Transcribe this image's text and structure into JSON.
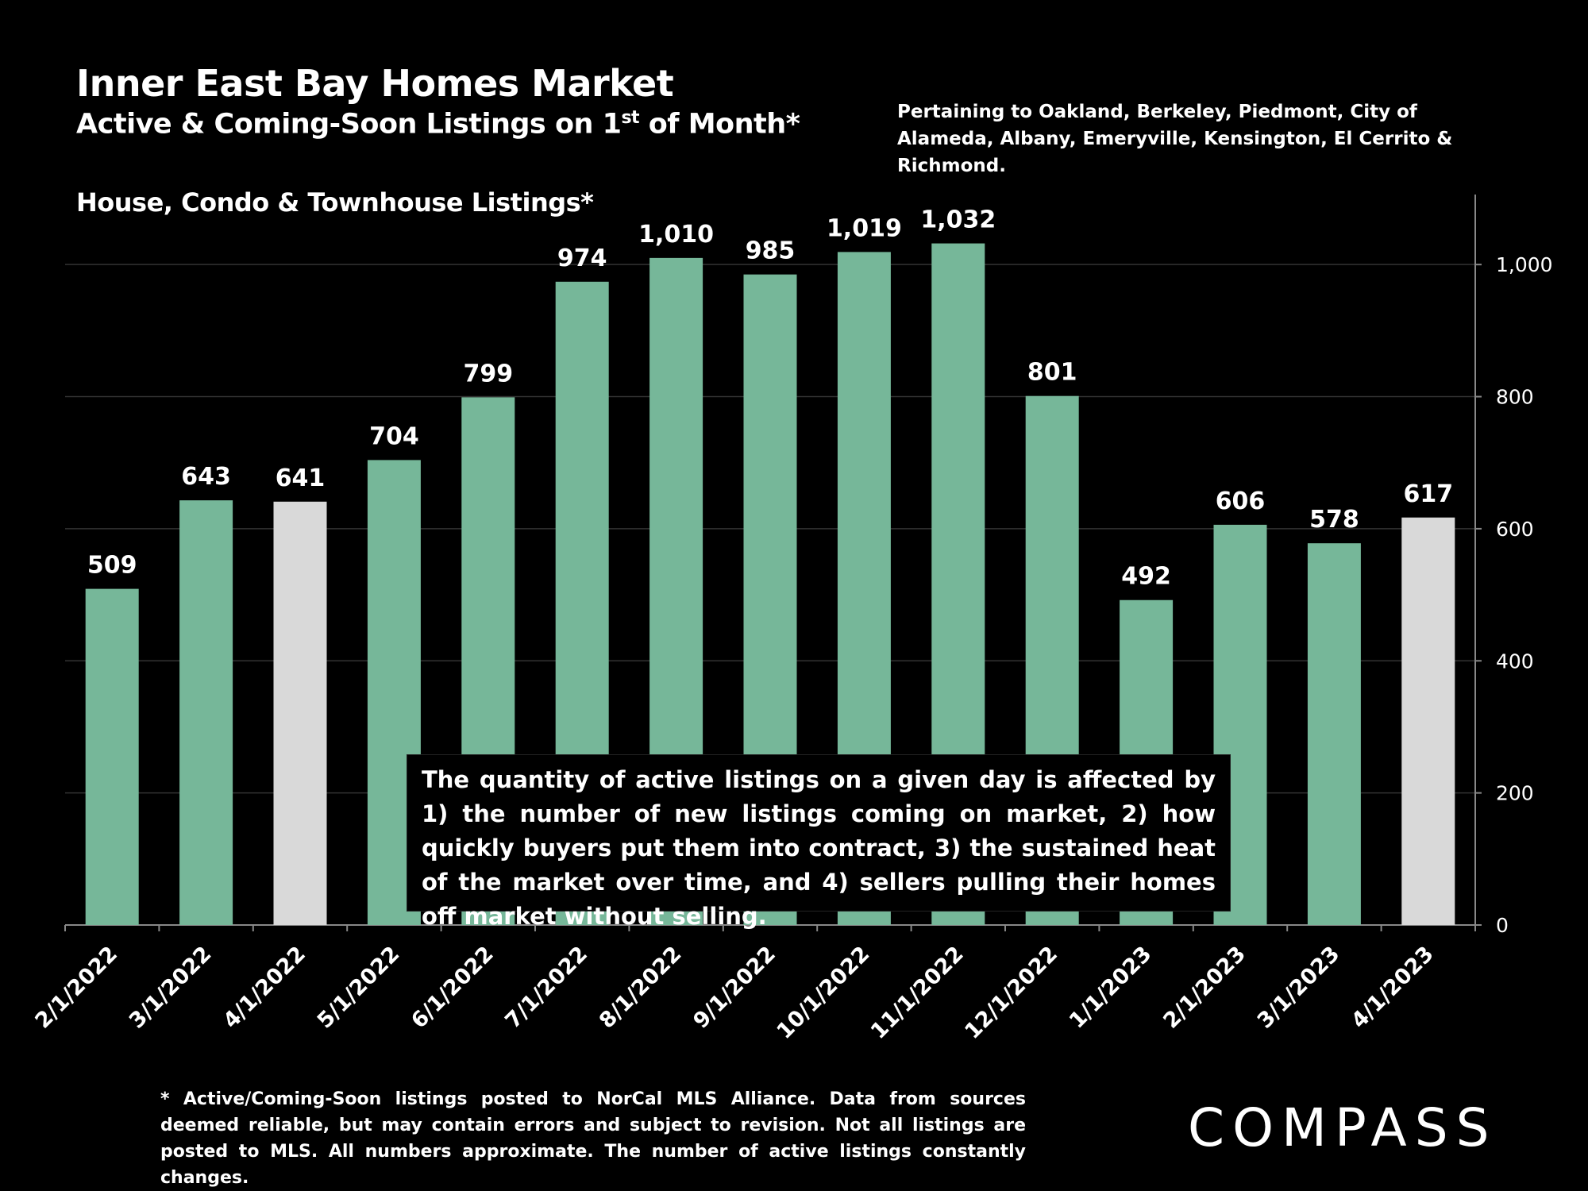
{
  "header": {
    "title": "Inner East Bay Homes Market",
    "subtitle_main": "Active & Coming-Soon Listings on 1",
    "subtitle_sup": "st",
    "subtitle_end": " of Month*",
    "pertaining": "Pertaining to Oakland, Berkeley, Piedmont, City of Alameda, Albany, Emeryville, Kensington, El Cerrito & Richmond.",
    "series_label": "House, Condo & Townhouse Listings*"
  },
  "callout": "The quantity of active listings on a given day is affected by 1) the number of new listings coming on market, 2) how quickly buyers put them into contract, 3) the sustained heat of the market over time, and 4) sellers pulling their homes off market without selling.",
  "footnote": "* Active/Coming-Soon listings posted to NorCal MLS Alliance.  Data from sources deemed reliable, but may contain errors and subject to revision.  Not all listings are posted to MLS. All numbers approximate. The number of active listings constantly changes.",
  "brand": "COMPASS",
  "colors": {
    "bar": "#76b799",
    "highlight": "#d9d9d9",
    "gridline": "#333333",
    "axis": "#888888"
  },
  "chart_data": {
    "type": "bar",
    "categories": [
      "2/1/2022",
      "3/1/2022",
      "4/1/2022",
      "5/1/2022",
      "6/1/2022",
      "7/1/2022",
      "8/1/2022",
      "9/1/2022",
      "10/1/2022",
      "11/1/2022",
      "12/1/2022",
      "1/1/2023",
      "2/1/2023",
      "3/1/2023",
      "4/1/2023"
    ],
    "values": [
      509,
      643,
      641,
      704,
      799,
      974,
      1010,
      985,
      1019,
      1032,
      801,
      492,
      606,
      578,
      617
    ],
    "value_labels": [
      "509",
      "643",
      "641",
      "704",
      "799",
      "974",
      "1,010",
      "985",
      "1,019",
      "1,032",
      "801",
      "492",
      "606",
      "578",
      "617"
    ],
    "highlighted_categories": [
      "4/1/2022",
      "4/1/2023"
    ],
    "y_axis": {
      "position": "right",
      "ylim": [
        0,
        1100
      ],
      "ticks": [
        0,
        200,
        400,
        600,
        800,
        1000
      ],
      "tick_labels": [
        "0",
        "200",
        "400",
        "600",
        "800",
        "1,000"
      ]
    },
    "grid": true
  }
}
